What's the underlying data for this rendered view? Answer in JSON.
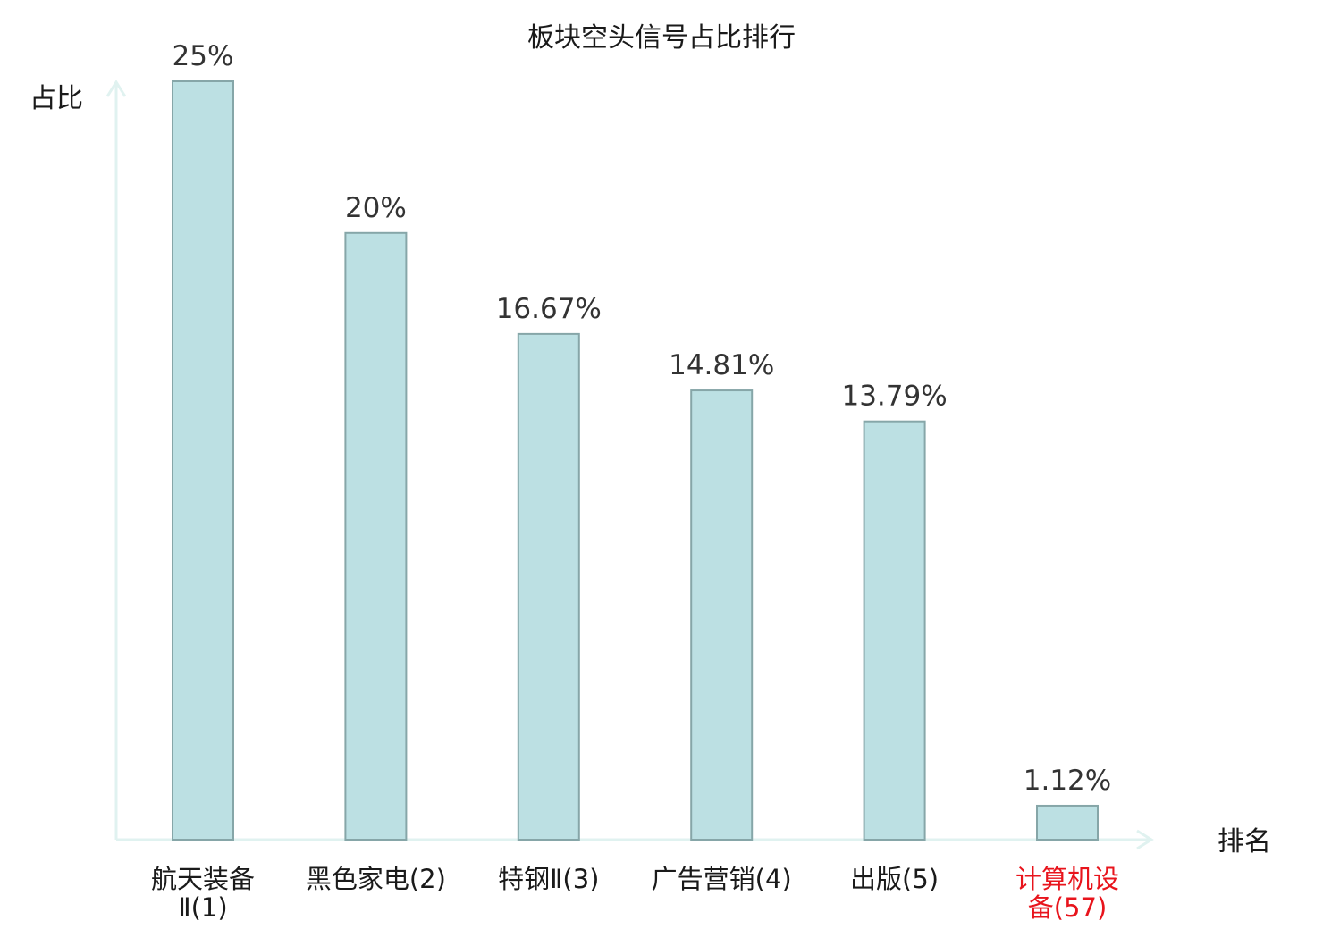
{
  "chart_data": {
    "type": "bar",
    "title": "板块空头信号占比排行",
    "ylabel": "占比",
    "xlabel": "排名",
    "ylim": [
      0,
      25
    ],
    "grid": false,
    "categories": [
      [
        "航天装备",
        "Ⅱ(1)"
      ],
      [
        "黑色家电(2)"
      ],
      [
        "特钢Ⅱ(3)"
      ],
      [
        "广告营销(4)"
      ],
      [
        "出版(5)"
      ],
      [
        "计算机设",
        "备(57)"
      ]
    ],
    "values": [
      25,
      20,
      16.67,
      14.81,
      13.79,
      1.12
    ],
    "value_labels": [
      "25%",
      "20%",
      "16.67%",
      "14.81%",
      "13.79%",
      "1.12%"
    ],
    "highlight_index": 5,
    "colors": {
      "bar_fill": "#bce0e3",
      "bar_stroke": "#86a6a8",
      "axis": "#e0f2f0",
      "label": "#333333",
      "highlight_label": "#e8141c"
    }
  }
}
